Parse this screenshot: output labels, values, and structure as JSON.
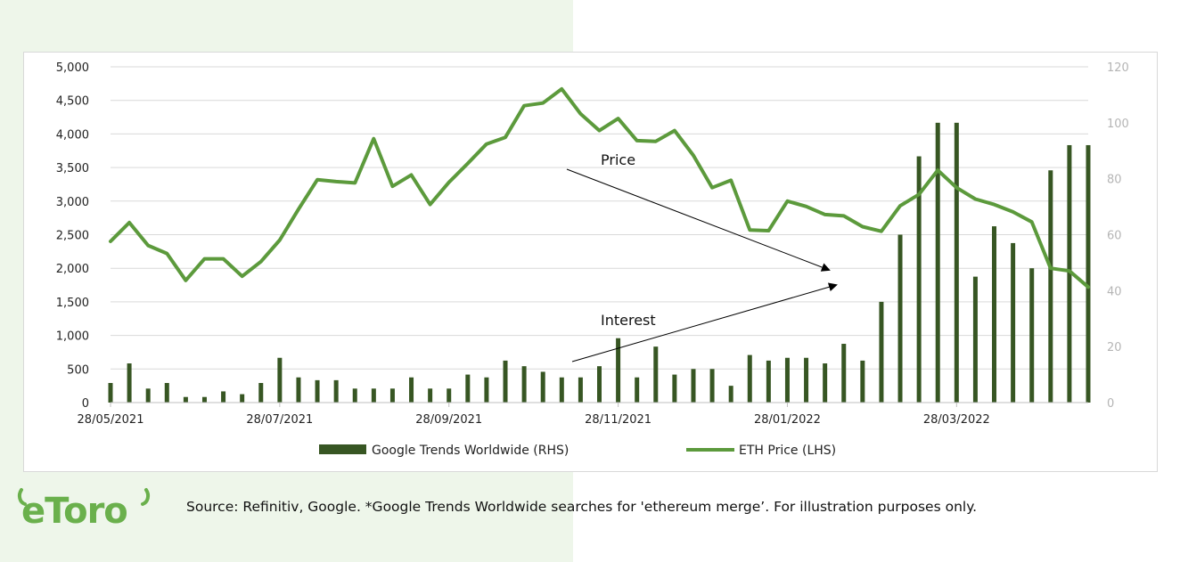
{
  "brand": {
    "logo_text": "eToro",
    "color": "#6ab04c"
  },
  "footer": {
    "source": "Source: Refinitiv, Google. *Google Trends Worldwide searches for 'ethereum merge’. For illustration purposes only."
  },
  "colors": {
    "line": "#5c9a3c",
    "bar": "#375623",
    "grid": "#d9d9d9",
    "panel": "#eef6ea"
  },
  "chart_data": {
    "type": "bar+line",
    "x_tick_labels": [
      "28/05/2021",
      "28/07/2021",
      "28/09/2021",
      "28/11/2021",
      "28/01/2022",
      "28/03/2022"
    ],
    "y_left": {
      "ticks": [
        "0",
        "500",
        "1,000",
        "1,500",
        "2,000",
        "2,500",
        "3,000",
        "3,500",
        "4,000",
        "4,500",
        "5,000"
      ],
      "ylim": [
        0,
        5000
      ]
    },
    "y_right": {
      "ticks": [
        "0",
        "20",
        "40",
        "60",
        "80",
        "100",
        "120"
      ],
      "ylim": [
        0,
        120
      ]
    },
    "series": [
      {
        "name": "Google Trends Worldwide (RHS)",
        "type": "bar",
        "axis": "right",
        "values": [
          7,
          14,
          5,
          7,
          2,
          2,
          4,
          3,
          7,
          16,
          9,
          8,
          8,
          5,
          5,
          5,
          9,
          5,
          5,
          10,
          9,
          15,
          13,
          11,
          9,
          9,
          13,
          23,
          9,
          20,
          10,
          12,
          12,
          6,
          17,
          15,
          16,
          16,
          14,
          21,
          15,
          36,
          60,
          88,
          100,
          100,
          45,
          63,
          57,
          48,
          83,
          92,
          92
        ]
      },
      {
        "name": "ETH Price (LHS)",
        "type": "line",
        "axis": "left",
        "values": [
          2400,
          2680,
          2340,
          2220,
          1820,
          2140,
          2140,
          1880,
          2100,
          2420,
          2880,
          3320,
          3290,
          3270,
          3930,
          3220,
          3390,
          2950,
          3280,
          3560,
          3850,
          3950,
          4420,
          4460,
          4670,
          4300,
          4050,
          4230,
          3900,
          3890,
          4050,
          3680,
          3200,
          3310,
          2570,
          2560,
          3000,
          2920,
          2800,
          2780,
          2620,
          2550,
          2930,
          3100,
          3460,
          3200,
          3030,
          2950,
          2840,
          2690,
          2000,
          1960,
          1720
        ]
      }
    ],
    "annotations": [
      "Price",
      "Interest"
    ],
    "legend": {
      "position": "bottom",
      "entries": [
        "Google Trends Worldwide (RHS)",
        "ETH Price (LHS)"
      ]
    },
    "grid": true
  }
}
